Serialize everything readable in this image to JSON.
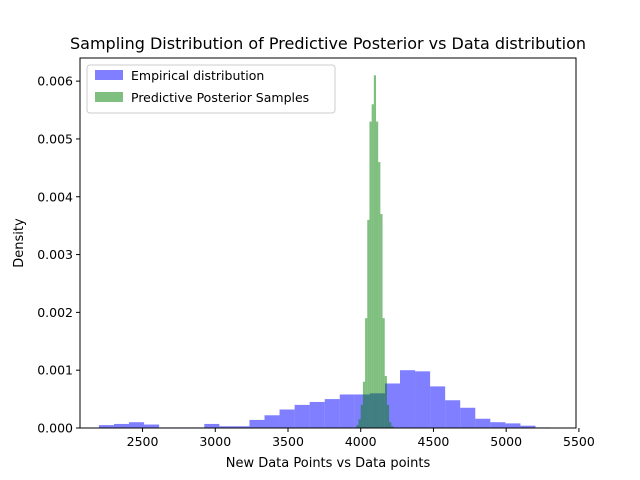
{
  "chart_data": {
    "type": "bar",
    "title": "Sampling Distribution of Predictive Posterior vs Data distribution",
    "xlabel": "New Data Points vs Data points",
    "ylabel": "Density",
    "xlim": [
      2070,
      5480
    ],
    "ylim": [
      0,
      0.0064
    ],
    "xticks": [
      2500,
      3000,
      3500,
      4000,
      4500,
      5000,
      5500
    ],
    "yticks": [
      0,
      0.001,
      0.002,
      0.003,
      0.004,
      0.005,
      0.006
    ],
    "xtick_labels": [
      "2500",
      "3000",
      "3500",
      "4000",
      "4500",
      "5000",
      "5500"
    ],
    "ytick_labels": [
      "0.000",
      "0.001",
      "0.002",
      "0.003",
      "0.004",
      "0.005",
      "0.006"
    ],
    "grid": false,
    "legend_position": "top-left",
    "series": [
      {
        "name": "Empirical distribution",
        "color": "#0000ff",
        "opacity": 0.5,
        "bin_start": 2200,
        "bin_width": 103.5,
        "values": [
          5e-05,
          7e-05,
          0.0001,
          6e-05,
          1e-05,
          1e-05,
          1e-05,
          7e-05,
          3e-05,
          3e-05,
          0.00014,
          0.00022,
          0.00032,
          0.0004,
          0.00045,
          0.0005,
          0.00058,
          0.00058,
          0.0006,
          0.00077,
          0.001,
          0.00098,
          0.00072,
          0.00048,
          0.00035,
          0.00016,
          0.0001,
          8e-05,
          4e-05,
          1e-05
        ]
      },
      {
        "name": "Predictive Posterior Samples",
        "color": "#008000",
        "opacity": 0.5,
        "bin_start": 3970,
        "bin_width": 15,
        "values": [
          5e-05,
          0.00015,
          0.0004,
          0.0008,
          0.0019,
          0.0036,
          0.0053,
          0.0056,
          0.0061,
          0.0053,
          0.0046,
          0.0037,
          0.0019,
          0.0009,
          0.0004,
          0.0001,
          3e-05
        ]
      }
    ]
  }
}
